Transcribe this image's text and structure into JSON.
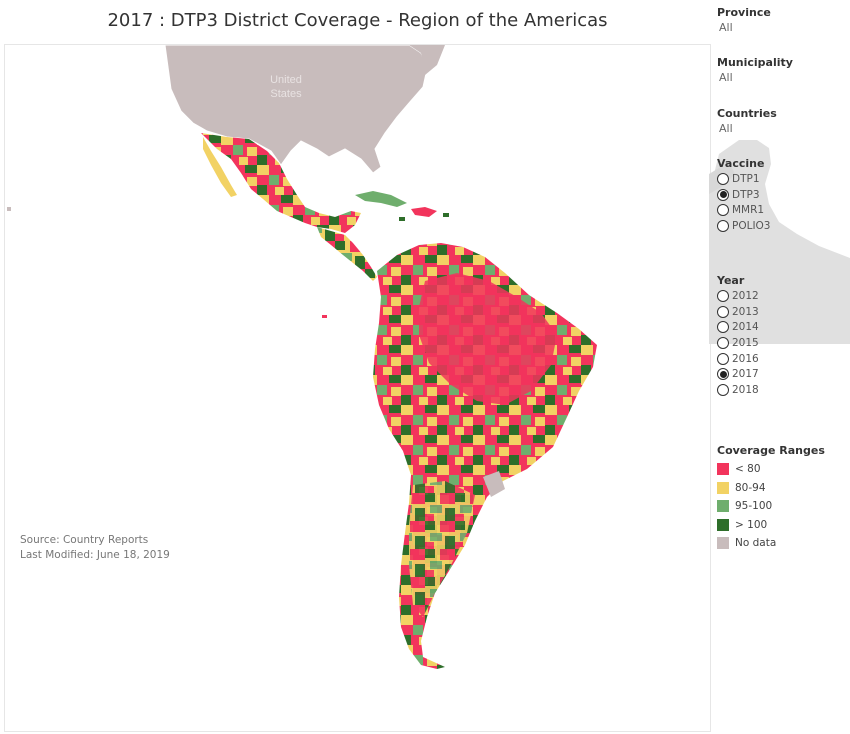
{
  "title": "2017 : DTP3 District Coverage - Region of the Americas",
  "map": {
    "label_us_line1": "United",
    "label_us_line2": "States"
  },
  "source_line": "Source:  Country Reports",
  "modified_line": "Last Modified: June 18, 2019",
  "filters": [
    {
      "label": "Province",
      "value": "All"
    },
    {
      "label": "Municipality",
      "value": "All"
    },
    {
      "label": "Countries",
      "value": "All"
    }
  ],
  "vaccine": {
    "label": "Vaccine",
    "options": [
      "DTP1",
      "DTP3",
      "MMR1",
      "POLIO3"
    ],
    "selected": "DTP3"
  },
  "year": {
    "label": "Year",
    "options": [
      "2012",
      "2013",
      "2014",
      "2015",
      "2016",
      "2017",
      "2018"
    ],
    "selected": "2017"
  },
  "legend": {
    "title": "Coverage Ranges",
    "items": [
      {
        "label": "< 80",
        "color": "#f2345c"
      },
      {
        "label": "80-94",
        "color": "#f2d264"
      },
      {
        "label": "95-100",
        "color": "#6fae6d"
      },
      {
        "label": " > 100",
        "color": "#2e6e2a"
      },
      {
        "label": "No data",
        "color": "#c8bcbc"
      }
    ]
  },
  "colors": {
    "land_no_data": "#c8bcbc",
    "land_outside": "#e0e0e0",
    "water": "#ffffff"
  }
}
